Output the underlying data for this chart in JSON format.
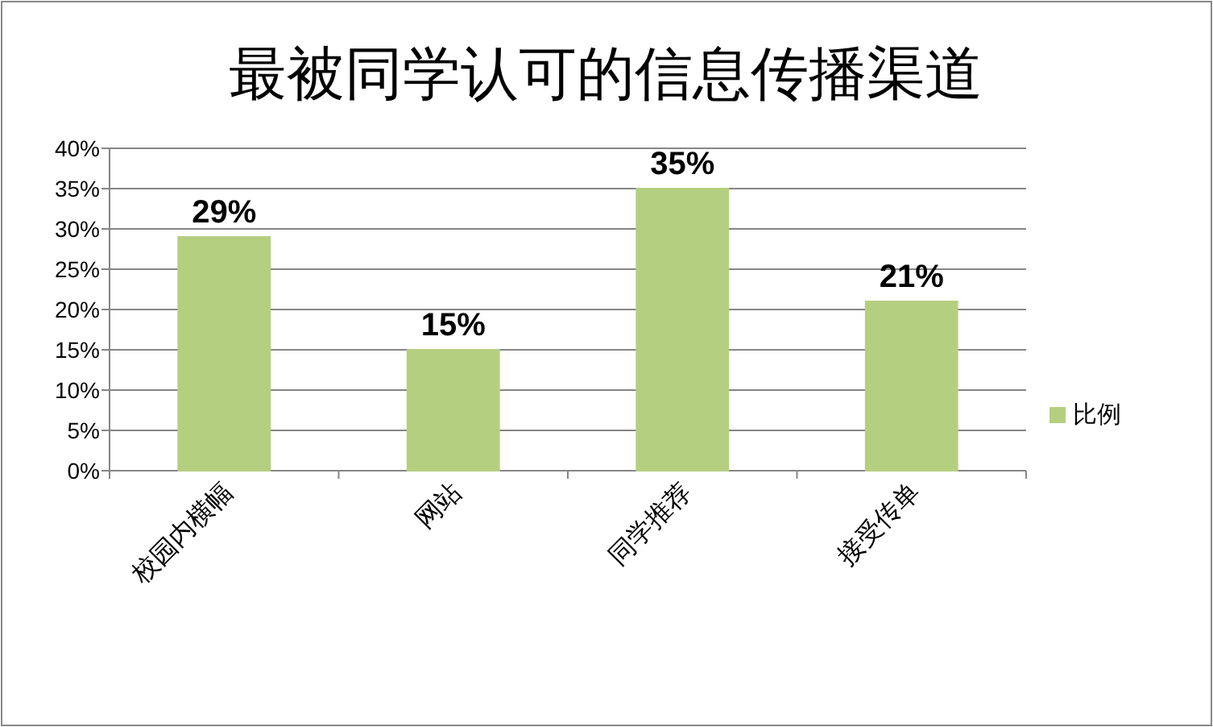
{
  "chart_data": {
    "type": "bar",
    "title": "最被同学认可的信息传播渠道",
    "categories": [
      "校园内横幅",
      "网站",
      "同学推荐",
      "接受传单"
    ],
    "series": [
      {
        "name": "比例",
        "color": "#b5cf80",
        "values": [
          29,
          15,
          35,
          21
        ],
        "value_labels": [
          "29%",
          "15%",
          "35%",
          "21%"
        ]
      }
    ],
    "ylim": [
      0,
      40
    ],
    "yticks": [
      {
        "value": 0,
        "label": "0%"
      },
      {
        "value": 5,
        "label": "5%"
      },
      {
        "value": 10,
        "label": "10%"
      },
      {
        "value": 15,
        "label": "15%"
      },
      {
        "value": 20,
        "label": "20%"
      },
      {
        "value": 25,
        "label": "25%"
      },
      {
        "value": 30,
        "label": "30%"
      },
      {
        "value": 35,
        "label": "35%"
      },
      {
        "value": 40,
        "label": "40%"
      }
    ],
    "grid": "y",
    "legend": "right"
  }
}
